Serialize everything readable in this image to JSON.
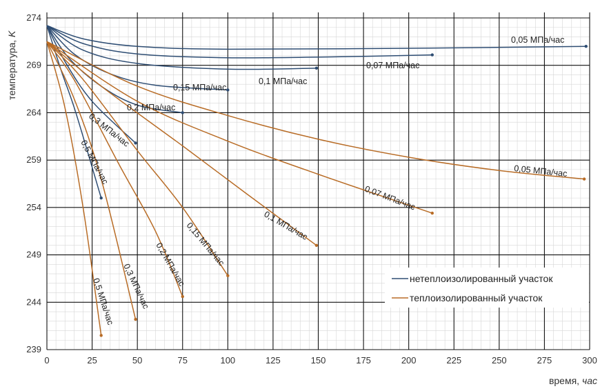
{
  "chart_data": {
    "type": "line",
    "title": "",
    "xlabel_word": "время,",
    "xlabel_unit": "час",
    "ylabel_word": "температура,",
    "ylabel_unit": "K",
    "xlim": [
      0,
      300
    ],
    "ylim": [
      239,
      275
    ],
    "x_ticks": [
      0,
      25,
      50,
      75,
      100,
      125,
      150,
      175,
      200,
      225,
      250,
      275,
      300
    ],
    "y_ticks": [
      239,
      244,
      249,
      254,
      259,
      264,
      269,
      274
    ],
    "grid": "major and minor",
    "legend_position": "lower-right",
    "colors": {
      "uninsulated": "#2e4d73",
      "insulated": "#b86c26"
    },
    "legend": [
      {
        "key": "uninsulated",
        "label": "нетеплоизолированный участок"
      },
      {
        "key": "insulated",
        "label": "теплоизолированный участок"
      }
    ],
    "series": [
      {
        "group": "uninsulated",
        "label": "0,05 МПа/час",
        "points": [
          [
            0,
            273.2
          ],
          [
            20,
            271.8
          ],
          [
            50,
            271
          ],
          [
            100,
            270.7
          ],
          [
            200,
            270.8
          ],
          [
            298,
            271
          ]
        ]
      },
      {
        "group": "uninsulated",
        "label": "0,07 МПа/час",
        "points": [
          [
            0,
            273.2
          ],
          [
            20,
            271.3
          ],
          [
            50,
            270.2
          ],
          [
            100,
            269.8
          ],
          [
            160,
            269.9
          ],
          [
            213,
            270.1
          ]
        ]
      },
      {
        "group": "uninsulated",
        "label": "0,1 МПа/час",
        "points": [
          [
            0,
            273.2
          ],
          [
            20,
            270.6
          ],
          [
            50,
            269.2
          ],
          [
            100,
            268.6
          ],
          [
            149,
            268.7
          ]
        ]
      },
      {
        "group": "uninsulated",
        "label": "0,15 МПа/час",
        "points": [
          [
            0,
            273.2
          ],
          [
            15,
            270.2
          ],
          [
            35,
            268.1
          ],
          [
            60,
            266.9
          ],
          [
            100,
            266.4
          ]
        ]
      },
      {
        "group": "uninsulated",
        "label": "0,2 МПа/час",
        "points": [
          [
            0,
            273.2
          ],
          [
            12,
            269.8
          ],
          [
            30,
            266.8
          ],
          [
            50,
            264.8
          ],
          [
            75,
            264
          ]
        ]
      },
      {
        "group": "uninsulated",
        "label": "0,3 МПа/час",
        "points": [
          [
            0,
            273.2
          ],
          [
            10,
            269.4
          ],
          [
            25,
            265.2
          ],
          [
            49,
            260.8
          ]
        ]
      },
      {
        "group": "uninsulated",
        "label": "0,5 МПа/час",
        "points": [
          [
            0,
            273.2
          ],
          [
            8,
            268.4
          ],
          [
            16,
            264
          ],
          [
            30,
            255
          ]
        ]
      },
      {
        "group": "insulated",
        "label": "0,05 МПа/час",
        "points": [
          [
            0,
            271.5
          ],
          [
            50,
            266.8
          ],
          [
            100,
            263.7
          ],
          [
            150,
            261.2
          ],
          [
            200,
            259.3
          ],
          [
            250,
            257.9
          ],
          [
            297,
            257
          ]
        ]
      },
      {
        "group": "insulated",
        "label": "0,07 МПа/час",
        "points": [
          [
            0,
            271.5
          ],
          [
            50,
            265.2
          ],
          [
            100,
            261
          ],
          [
            150,
            257.5
          ],
          [
            213,
            253.4
          ]
        ]
      },
      {
        "group": "insulated",
        "label": "0,1 МПа/час",
        "points": [
          [
            0,
            271.5
          ],
          [
            30,
            266.8
          ],
          [
            75,
            260.5
          ],
          [
            110,
            255.5
          ],
          [
            149,
            250
          ]
        ]
      },
      {
        "group": "insulated",
        "label": "0,15 МПа/час",
        "points": [
          [
            0,
            271.5
          ],
          [
            20,
            267.5
          ],
          [
            50,
            260
          ],
          [
            75,
            254
          ],
          [
            100,
            246.8
          ]
        ]
      },
      {
        "group": "insulated",
        "label": "0,2 МПа/час",
        "points": [
          [
            0,
            271.5
          ],
          [
            15,
            267.5
          ],
          [
            40,
            258.5
          ],
          [
            60,
            251.5
          ],
          [
            75,
            244.6
          ]
        ]
      },
      {
        "group": "insulated",
        "label": "0,3 МПа/час",
        "points": [
          [
            0,
            271.5
          ],
          [
            15,
            265.5
          ],
          [
            30,
            257
          ],
          [
            49,
            242.2
          ]
        ]
      },
      {
        "group": "insulated",
        "label": "0,5 МПа/час",
        "points": [
          [
            0,
            271.5
          ],
          [
            10,
            264.5
          ],
          [
            20,
            254
          ],
          [
            30,
            240.5
          ]
        ]
      }
    ]
  }
}
